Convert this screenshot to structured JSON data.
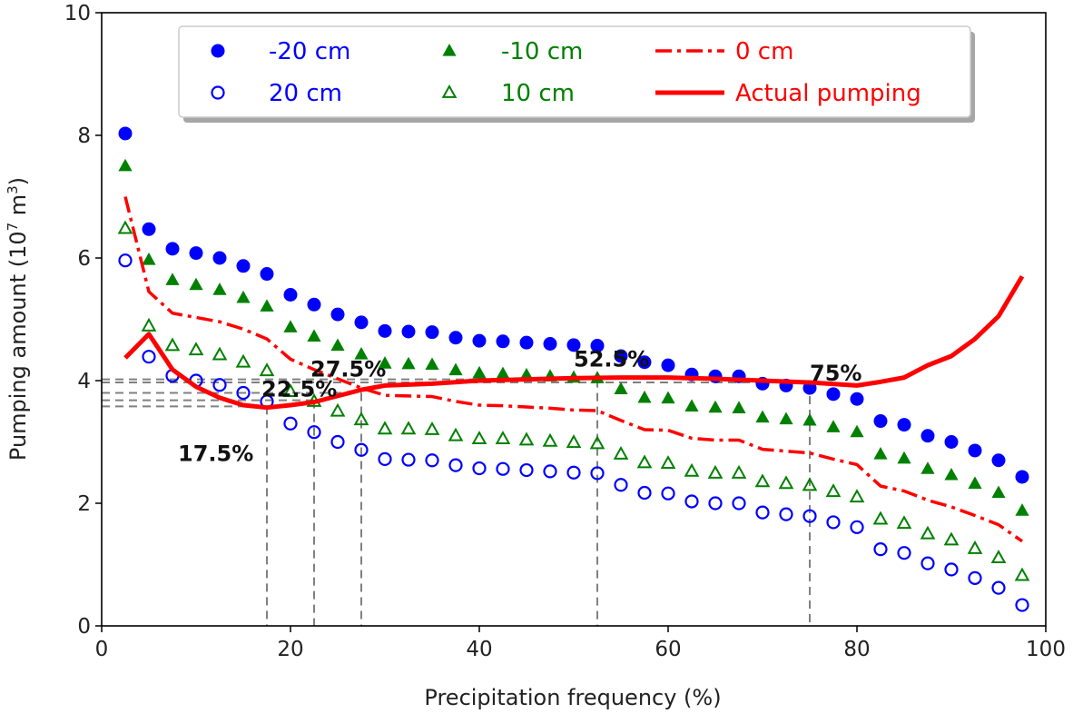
{
  "chart_data": {
    "type": "scatter",
    "xlabel": "Precipitation frequency (%)",
    "ylabel_main": "Pumping amount (10",
    "ylabel_exp1": "7",
    "ylabel_mid": " m",
    "ylabel_exp2": "3",
    "ylabel_end": ")",
    "xlim": [
      0,
      100
    ],
    "ylim": [
      0,
      10
    ],
    "xticks": [
      0,
      20,
      40,
      60,
      80,
      100
    ],
    "yticks": [
      0,
      2,
      4,
      6,
      8,
      10
    ],
    "x": [
      2.5,
      5,
      7.5,
      10,
      12.5,
      15,
      17.5,
      20,
      22.5,
      25,
      27.5,
      30,
      32.5,
      35,
      37.5,
      40,
      42.5,
      45,
      47.5,
      50,
      52.5,
      55,
      57.5,
      60,
      62.5,
      65,
      67.5,
      70,
      72.5,
      75,
      77.5,
      80,
      82.5,
      85,
      87.5,
      90,
      92.5,
      95,
      97.5
    ],
    "series": [
      {
        "name": "-20 cm",
        "marker": "circle-filled",
        "color": "#0000ff",
        "values": [
          8.03,
          6.47,
          6.15,
          6.08,
          6.0,
          5.87,
          5.74,
          5.4,
          5.24,
          5.08,
          4.95,
          4.81,
          4.8,
          4.79,
          4.7,
          4.65,
          4.64,
          4.62,
          4.6,
          4.58,
          4.57,
          4.4,
          4.3,
          4.25,
          4.1,
          4.07,
          4.07,
          3.95,
          3.92,
          3.88,
          3.78,
          3.7,
          3.34,
          3.28,
          3.1,
          3.0,
          2.86,
          2.7,
          2.43
        ]
      },
      {
        "name": "20 cm",
        "marker": "circle-open",
        "color": "#0000ff",
        "values": [
          5.96,
          4.39,
          4.08,
          4.0,
          3.93,
          3.8,
          3.66,
          3.3,
          3.16,
          3.0,
          2.87,
          2.72,
          2.71,
          2.7,
          2.62,
          2.57,
          2.56,
          2.54,
          2.52,
          2.5,
          2.49,
          2.3,
          2.17,
          2.16,
          2.03,
          2.0,
          2.0,
          1.85,
          1.82,
          1.79,
          1.69,
          1.61,
          1.25,
          1.19,
          1.02,
          0.92,
          0.78,
          0.62,
          0.34
        ]
      },
      {
        "name": "-10 cm",
        "marker": "triangle-filled",
        "color": "#008000",
        "values": [
          7.5,
          5.97,
          5.64,
          5.56,
          5.48,
          5.35,
          5.21,
          4.87,
          4.72,
          4.57,
          4.43,
          4.28,
          4.27,
          4.26,
          4.17,
          4.12,
          4.11,
          4.09,
          4.07,
          4.05,
          4.04,
          3.86,
          3.72,
          3.71,
          3.58,
          3.56,
          3.55,
          3.4,
          3.37,
          3.35,
          3.24,
          3.16,
          2.8,
          2.73,
          2.56,
          2.46,
          2.32,
          2.17,
          1.88
        ]
      },
      {
        "name": "10 cm",
        "marker": "triangle-open",
        "color": "#008000",
        "values": [
          6.48,
          4.89,
          4.57,
          4.5,
          4.42,
          4.3,
          4.16,
          3.82,
          3.66,
          3.5,
          3.36,
          3.21,
          3.21,
          3.2,
          3.1,
          3.05,
          3.05,
          3.03,
          3.01,
          2.99,
          2.97,
          2.8,
          2.66,
          2.65,
          2.52,
          2.49,
          2.49,
          2.35,
          2.32,
          2.29,
          2.19,
          2.1,
          1.74,
          1.67,
          1.5,
          1.4,
          1.26,
          1.11,
          0.82
        ]
      },
      {
        "name": "0 cm",
        "marker": "line-dashdot",
        "color": "#ff0000",
        "values": [
          7.0,
          5.45,
          5.1,
          5.03,
          4.96,
          4.84,
          4.68,
          4.35,
          4.18,
          4.03,
          3.88,
          3.76,
          3.75,
          3.74,
          3.66,
          3.6,
          3.59,
          3.57,
          3.55,
          3.52,
          3.51,
          3.35,
          3.2,
          3.19,
          3.06,
          3.03,
          3.03,
          2.88,
          2.85,
          2.82,
          2.72,
          2.63,
          2.28,
          2.2,
          2.05,
          1.94,
          1.8,
          1.65,
          1.38
        ]
      },
      {
        "name": "Actual pumping",
        "marker": "line-solid",
        "color": "#ff0000",
        "x": [
          2.5,
          5,
          7.5,
          10,
          12.5,
          15,
          17.5,
          20,
          22.5,
          25,
          27.5,
          30,
          35,
          40,
          45,
          50,
          55,
          60,
          65,
          70,
          75,
          80,
          82.5,
          85,
          87.5,
          90,
          92.5,
          95,
          97.5
        ],
        "values": [
          4.37,
          4.76,
          4.18,
          3.9,
          3.72,
          3.6,
          3.56,
          3.6,
          3.65,
          3.75,
          3.85,
          3.92,
          3.95,
          4.0,
          4.02,
          4.04,
          4.05,
          4.05,
          4.03,
          4.0,
          3.97,
          3.92,
          3.98,
          4.05,
          4.25,
          4.4,
          4.68,
          5.05,
          5.7
        ]
      }
    ],
    "reference_lines": [
      {
        "x": 17.5,
        "y": 3.58,
        "label": "17.5%"
      },
      {
        "x": 22.5,
        "y": 3.68,
        "label": "22.5%"
      },
      {
        "x": 27.5,
        "y": 3.8,
        "label": "27.5%"
      },
      {
        "x": 52.5,
        "y": 4.02,
        "label": "52.5%"
      },
      {
        "x": 75,
        "y": 3.97,
        "label": "75%"
      }
    ],
    "legend": {
      "position": "top",
      "columns": 3
    },
    "grid": false
  }
}
